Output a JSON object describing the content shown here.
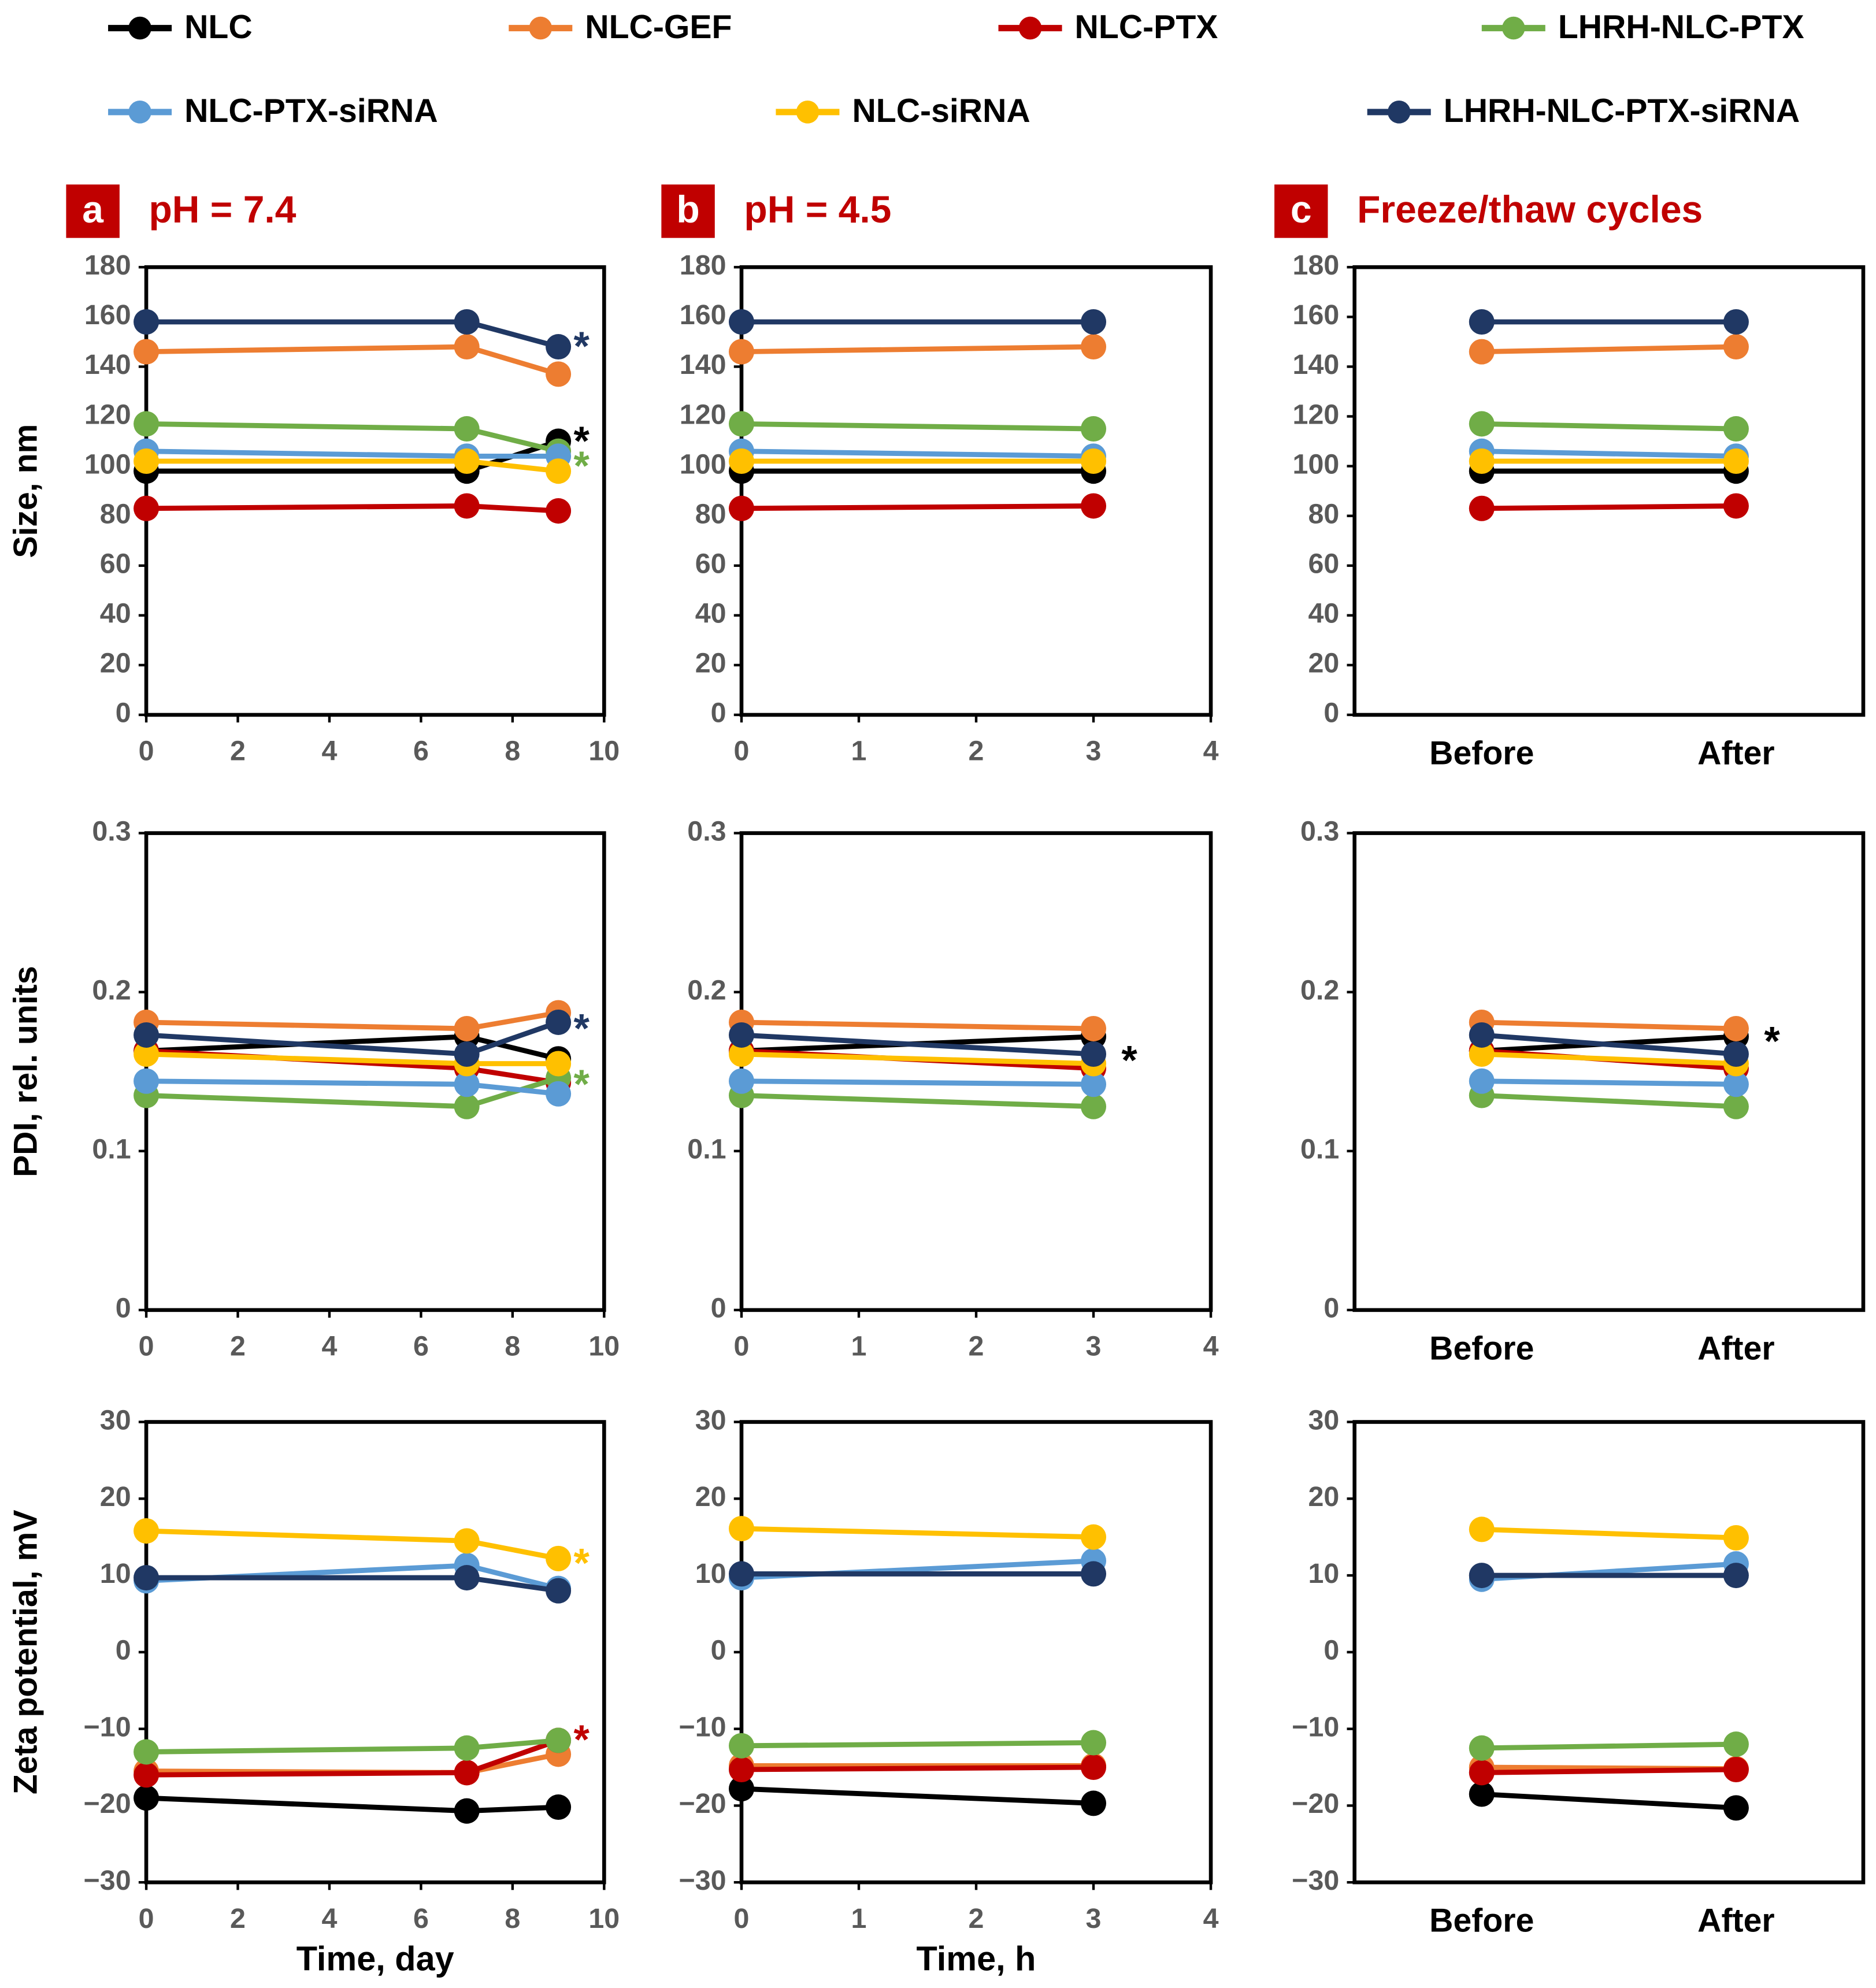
{
  "chart_data": [
    {
      "type": "line",
      "panel": "a",
      "title": "pH = 7.4",
      "ylabel": "Size, nm",
      "x": [
        0,
        7,
        9
      ],
      "xlim": [
        0,
        10
      ],
      "xticks": [
        0,
        2,
        4,
        6,
        8,
        10
      ],
      "ylim": [
        0,
        180
      ],
      "yticks": [
        0,
        20,
        40,
        60,
        80,
        100,
        120,
        140,
        160,
        180
      ],
      "series": [
        {
          "name": "NLC",
          "color": "#000000",
          "values": [
            98,
            98,
            110
          ]
        },
        {
          "name": "NLC-GEF",
          "color": "#ed7d31",
          "values": [
            146,
            148,
            137
          ]
        },
        {
          "name": "NLC-PTX",
          "color": "#c00000",
          "values": [
            83,
            84,
            82
          ]
        },
        {
          "name": "LHRH-NLC-PTX",
          "color": "#70ad47",
          "values": [
            117,
            115,
            106
          ]
        },
        {
          "name": "NLC-PTX-siRNA",
          "color": "#5b9bd5",
          "values": [
            106,
            104,
            104
          ]
        },
        {
          "name": "NLC-siRNA",
          "color": "#ffc000",
          "values": [
            102,
            102,
            98
          ]
        },
        {
          "name": "LHRH-NLC-PTX-siRNA",
          "color": "#203864",
          "values": [
            158,
            158,
            148
          ]
        }
      ],
      "annotations": [
        {
          "text": "*",
          "x": 9,
          "y": 150,
          "color": "#203864"
        },
        {
          "text": "*",
          "x": 9,
          "y": 112,
          "color": "#000000"
        },
        {
          "text": "*",
          "x": 9,
          "y": 102,
          "color": "#70ad47"
        }
      ]
    },
    {
      "type": "line",
      "panel": "b",
      "title": "pH = 4.5",
      "x": [
        0,
        3
      ],
      "xlim": [
        0,
        4
      ],
      "xticks": [
        0,
        1,
        2,
        3,
        4
      ],
      "ylim": [
        0,
        180
      ],
      "yticks": [
        0,
        20,
        40,
        60,
        80,
        100,
        120,
        140,
        160,
        180
      ],
      "series": [
        {
          "name": "NLC",
          "color": "#000000",
          "values": [
            98,
            98
          ]
        },
        {
          "name": "NLC-GEF",
          "color": "#ed7d31",
          "values": [
            146,
            148
          ]
        },
        {
          "name": "NLC-PTX",
          "color": "#c00000",
          "values": [
            83,
            84
          ]
        },
        {
          "name": "LHRH-NLC-PTX",
          "color": "#70ad47",
          "values": [
            117,
            115
          ]
        },
        {
          "name": "NLC-PTX-siRNA",
          "color": "#5b9bd5",
          "values": [
            106,
            104
          ]
        },
        {
          "name": "NLC-siRNA",
          "color": "#ffc000",
          "values": [
            102,
            102
          ]
        },
        {
          "name": "LHRH-NLC-PTX-siRNA",
          "color": "#203864",
          "values": [
            158,
            158
          ]
        }
      ]
    },
    {
      "type": "line",
      "panel": "c",
      "title": "Freeze/thaw cycles",
      "categories": [
        "Before",
        "After"
      ],
      "ylim": [
        0,
        180
      ],
      "yticks": [
        0,
        20,
        40,
        60,
        80,
        100,
        120,
        140,
        160,
        180
      ],
      "series": [
        {
          "name": "NLC",
          "color": "#000000",
          "values": [
            98,
            98
          ]
        },
        {
          "name": "NLC-GEF",
          "color": "#ed7d31",
          "values": [
            146,
            148
          ]
        },
        {
          "name": "NLC-PTX",
          "color": "#c00000",
          "values": [
            83,
            84
          ]
        },
        {
          "name": "LHRH-NLC-PTX",
          "color": "#70ad47",
          "values": [
            117,
            115
          ]
        },
        {
          "name": "NLC-PTX-siRNA",
          "color": "#5b9bd5",
          "values": [
            106,
            104
          ]
        },
        {
          "name": "NLC-siRNA",
          "color": "#ffc000",
          "values": [
            102,
            102
          ]
        },
        {
          "name": "LHRH-NLC-PTX-siRNA",
          "color": "#203864",
          "values": [
            158,
            158
          ]
        }
      ]
    },
    {
      "type": "line",
      "ylabel": "PDI, rel. units",
      "x": [
        0,
        7,
        9
      ],
      "xlim": [
        0,
        10
      ],
      "xticks": [
        0,
        2,
        4,
        6,
        8,
        10
      ],
      "ylim": [
        0,
        0.3
      ],
      "yticks": [
        0,
        0.1,
        0.2,
        0.3
      ],
      "series": [
        {
          "name": "NLC",
          "color": "#000000",
          "values": [
            0.163,
            0.172,
            0.158
          ]
        },
        {
          "name": "NLC-GEF",
          "color": "#ed7d31",
          "values": [
            0.181,
            0.177,
            0.187
          ]
        },
        {
          "name": "NLC-PTX",
          "color": "#c00000",
          "values": [
            0.163,
            0.152,
            0.143
          ]
        },
        {
          "name": "LHRH-NLC-PTX",
          "color": "#70ad47",
          "values": [
            0.135,
            0.128,
            0.146
          ]
        },
        {
          "name": "NLC-PTX-siRNA",
          "color": "#5b9bd5",
          "values": [
            0.144,
            0.142,
            0.136
          ]
        },
        {
          "name": "NLC-siRNA",
          "color": "#ffc000",
          "values": [
            0.161,
            0.155,
            0.155
          ]
        },
        {
          "name": "LHRH-NLC-PTX-siRNA",
          "color": "#203864",
          "values": [
            0.173,
            0.161,
            0.181
          ]
        }
      ],
      "annotations": [
        {
          "text": "*",
          "x": 9,
          "y": 0.18,
          "color": "#203864"
        },
        {
          "text": "*",
          "x": 9,
          "y": 0.145,
          "color": "#70ad47"
        }
      ]
    },
    {
      "type": "line",
      "x": [
        0,
        3
      ],
      "xlim": [
        0,
        4
      ],
      "xticks": [
        0,
        1,
        2,
        3,
        4
      ],
      "ylim": [
        0,
        0.3
      ],
      "yticks": [
        0,
        0.1,
        0.2,
        0.3
      ],
      "series": [
        {
          "name": "NLC",
          "color": "#000000",
          "values": [
            0.163,
            0.172
          ]
        },
        {
          "name": "NLC-GEF",
          "color": "#ed7d31",
          "values": [
            0.181,
            0.177
          ]
        },
        {
          "name": "NLC-PTX",
          "color": "#c00000",
          "values": [
            0.163,
            0.152
          ]
        },
        {
          "name": "LHRH-NLC-PTX",
          "color": "#70ad47",
          "values": [
            0.135,
            0.128
          ]
        },
        {
          "name": "NLC-PTX-siRNA",
          "color": "#5b9bd5",
          "values": [
            0.144,
            0.142
          ]
        },
        {
          "name": "NLC-siRNA",
          "color": "#ffc000",
          "values": [
            0.161,
            0.155
          ]
        },
        {
          "name": "LHRH-NLC-PTX-siRNA",
          "color": "#203864",
          "values": [
            0.173,
            0.161
          ]
        }
      ],
      "annotations": [
        {
          "text": "*",
          "x": 3,
          "y": 0.16,
          "color": "#000000"
        }
      ]
    },
    {
      "type": "line",
      "categories": [
        "Before",
        "After"
      ],
      "ylim": [
        0,
        0.3
      ],
      "yticks": [
        0,
        0.1,
        0.2,
        0.3
      ],
      "series": [
        {
          "name": "NLC",
          "color": "#000000",
          "values": [
            0.163,
            0.172
          ]
        },
        {
          "name": "NLC-GEF",
          "color": "#ed7d31",
          "values": [
            0.181,
            0.177
          ]
        },
        {
          "name": "NLC-PTX",
          "color": "#c00000",
          "values": [
            0.163,
            0.152
          ]
        },
        {
          "name": "LHRH-NLC-PTX",
          "color": "#70ad47",
          "values": [
            0.135,
            0.128
          ]
        },
        {
          "name": "NLC-PTX-siRNA",
          "color": "#5b9bd5",
          "values": [
            0.144,
            0.142
          ]
        },
        {
          "name": "NLC-siRNA",
          "color": "#ffc000",
          "values": [
            0.161,
            0.155
          ]
        },
        {
          "name": "LHRH-NLC-PTX-siRNA",
          "color": "#203864",
          "values": [
            0.173,
            0.161
          ]
        }
      ],
      "annotations": [
        {
          "text": "*",
          "x": "After",
          "y": 0.172,
          "color": "#000000"
        }
      ]
    },
    {
      "type": "line",
      "ylabel": "Zeta potential, mV",
      "xlabel": "Time, day",
      "x": [
        0,
        7,
        9
      ],
      "xlim": [
        0,
        10
      ],
      "xticks": [
        0,
        2,
        4,
        6,
        8,
        10
      ],
      "ylim": [
        -30,
        30
      ],
      "yticks": [
        {
          "value": -30,
          "label": "−30"
        },
        {
          "value": -20,
          "label": "−20"
        },
        {
          "value": -10,
          "label": "−10"
        },
        0,
        10,
        20,
        30
      ],
      "series": [
        {
          "name": "NLC",
          "color": "#000000",
          "values": [
            -19,
            -20.7,
            -20.2
          ]
        },
        {
          "name": "NLC-GEF",
          "color": "#ed7d31",
          "values": [
            -15.5,
            -15.7,
            -13.3
          ]
        },
        {
          "name": "NLC-PTX",
          "color": "#c00000",
          "values": [
            -16,
            -15.7,
            -11.5
          ]
        },
        {
          "name": "LHRH-NLC-PTX",
          "color": "#70ad47",
          "values": [
            -13,
            -12.5,
            -11.5
          ]
        },
        {
          "name": "NLC-PTX-siRNA",
          "color": "#5b9bd5",
          "values": [
            9.3,
            11.3,
            8.3
          ]
        },
        {
          "name": "NLC-siRNA",
          "color": "#ffc000",
          "values": [
            15.8,
            14.5,
            12.2
          ]
        },
        {
          "name": "LHRH-NLC-PTX-siRNA",
          "color": "#203864",
          "values": [
            9.7,
            9.7,
            8
          ]
        }
      ],
      "annotations": [
        {
          "text": "*",
          "x": 9,
          "y": 12.2,
          "color": "#ffc000"
        },
        {
          "text": "*",
          "x": 9,
          "y": -10.8,
          "color": "#c00000"
        }
      ]
    },
    {
      "type": "line",
      "xlabel": "Time, h",
      "x": [
        0,
        3
      ],
      "xlim": [
        0,
        4
      ],
      "xticks": [
        0,
        1,
        2,
        3,
        4
      ],
      "ylim": [
        -30,
        30
      ],
      "yticks": [
        {
          "value": -30,
          "label": "−30"
        },
        {
          "value": -20,
          "label": "−20"
        },
        {
          "value": -10,
          "label": "−10"
        },
        0,
        10,
        20,
        30
      ],
      "series": [
        {
          "name": "NLC",
          "color": "#000000",
          "values": [
            -17.8,
            -19.7
          ]
        },
        {
          "name": "NLC-GEF",
          "color": "#ed7d31",
          "values": [
            -14.8,
            -14.8
          ]
        },
        {
          "name": "NLC-PTX",
          "color": "#c00000",
          "values": [
            -15.3,
            -15
          ]
        },
        {
          "name": "LHRH-NLC-PTX",
          "color": "#70ad47",
          "values": [
            -12.2,
            -11.8
          ]
        },
        {
          "name": "NLC-PTX-siRNA",
          "color": "#5b9bd5",
          "values": [
            9.7,
            11.9
          ]
        },
        {
          "name": "NLC-siRNA",
          "color": "#ffc000",
          "values": [
            16.1,
            15
          ]
        },
        {
          "name": "LHRH-NLC-PTX-siRNA",
          "color": "#203864",
          "values": [
            10.2,
            10.2
          ]
        }
      ]
    },
    {
      "type": "line",
      "categories": [
        "Before",
        "After"
      ],
      "ylim": [
        -30,
        30
      ],
      "yticks": [
        {
          "value": -30,
          "label": "−30"
        },
        {
          "value": -20,
          "label": "−20"
        },
        {
          "value": -10,
          "label": "−10"
        },
        0,
        10,
        20,
        30
      ],
      "series": [
        {
          "name": "NLC",
          "color": "#000000",
          "values": [
            -18.5,
            -20.3
          ]
        },
        {
          "name": "NLC-GEF",
          "color": "#ed7d31",
          "values": [
            -15,
            -15.2
          ]
        },
        {
          "name": "NLC-PTX",
          "color": "#c00000",
          "values": [
            -15.7,
            -15.3
          ]
        },
        {
          "name": "LHRH-NLC-PTX",
          "color": "#70ad47",
          "values": [
            -12.5,
            -12
          ]
        },
        {
          "name": "NLC-PTX-siRNA",
          "color": "#5b9bd5",
          "values": [
            9.5,
            11.5
          ]
        },
        {
          "name": "NLC-siRNA",
          "color": "#ffc000",
          "values": [
            16,
            14.9
          ]
        },
        {
          "name": "LHRH-NLC-PTX-siRNA",
          "color": "#203864",
          "values": [
            10,
            10
          ]
        }
      ]
    }
  ]
}
